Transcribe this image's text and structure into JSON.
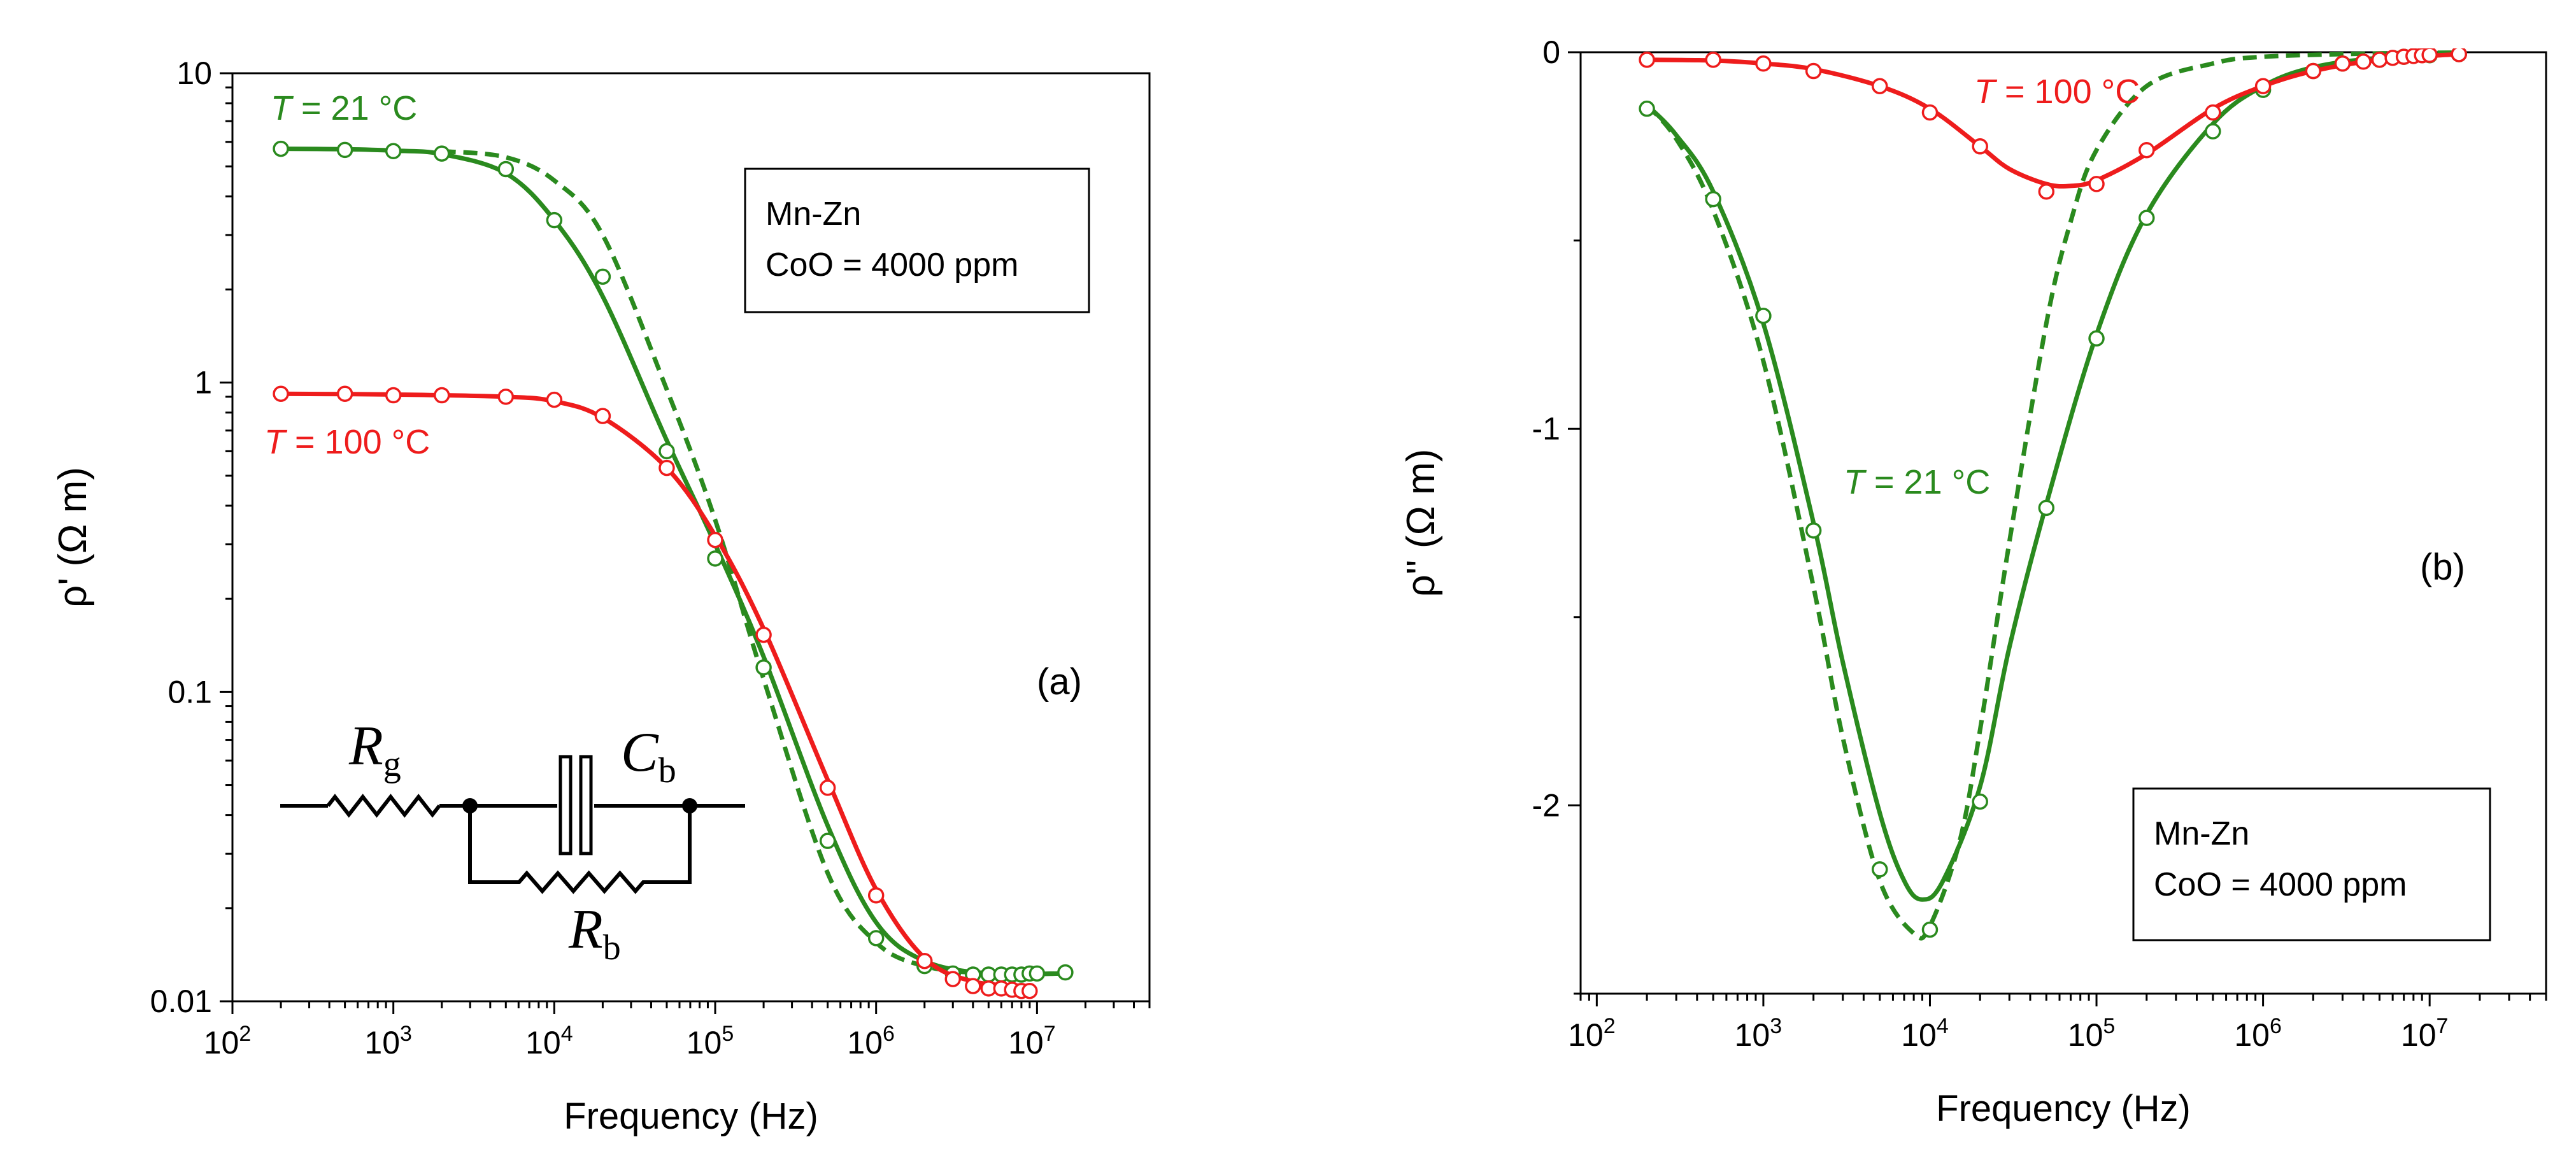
{
  "chart_data": [
    {
      "type": "scatter",
      "panel_label": "(a)",
      "xlabel": "Frequency (Hz)",
      "ylabel": "ρ' (Ω m)",
      "x_scale": "log",
      "y_scale": "log",
      "xlim": [
        100,
        50000000
      ],
      "ylim": [
        0.01,
        10
      ],
      "x_ticks": [
        {
          "value": 100,
          "base": "10",
          "exp": "2"
        },
        {
          "value": 1000,
          "base": "10",
          "exp": "3"
        },
        {
          "value": 10000,
          "base": "10",
          "exp": "4"
        },
        {
          "value": 100000,
          "base": "10",
          "exp": "5"
        },
        {
          "value": 1000000,
          "base": "10",
          "exp": "6"
        },
        {
          "value": 10000000,
          "base": "10",
          "exp": "7"
        }
      ],
      "y_ticks": [
        {
          "value": 0.01,
          "label": "0.01"
        },
        {
          "value": 0.1,
          "label": "0.1"
        },
        {
          "value": 1,
          "label": "1"
        },
        {
          "value": 10,
          "label": "10"
        }
      ],
      "legend_box": {
        "line1": "Mn-Zn",
        "line2": "CoO = 4000 ppm",
        "position": "upper-right"
      },
      "series": [
        {
          "name": "T = 21 °C",
          "label_italic": "T",
          "label_rest": " = 21 °C",
          "color": "#2a8a1e",
          "marker": "open-circle",
          "points": [
            [
              200,
              5.7
            ],
            [
              500,
              5.65
            ],
            [
              1000,
              5.6
            ],
            [
              2000,
              5.5
            ],
            [
              5000,
              4.9
            ],
            [
              10000,
              3.35
            ],
            [
              20000,
              2.2
            ],
            [
              50000,
              0.6
            ],
            [
              100000,
              0.27
            ],
            [
              200000,
              0.12
            ],
            [
              500000,
              0.033
            ],
            [
              1000000,
              0.016
            ],
            [
              2000000,
              0.013
            ],
            [
              3000000,
              0.0123
            ],
            [
              4000000,
              0.0122
            ],
            [
              5000000,
              0.0122
            ],
            [
              6000000,
              0.0122
            ],
            [
              7000000,
              0.0122
            ],
            [
              8000000,
              0.0122
            ],
            [
              9000000,
              0.0123
            ],
            [
              10000000,
              0.0123
            ],
            [
              15000000,
              0.0124
            ]
          ],
          "fit_solid": [
            [
              200,
              5.7
            ],
            [
              500,
              5.68
            ],
            [
              1000,
              5.62
            ],
            [
              2000,
              5.48
            ],
            [
              5000,
              4.75
            ],
            [
              10000,
              3.35
            ],
            [
              20000,
              1.9
            ],
            [
              50000,
              0.65
            ],
            [
              100000,
              0.3
            ],
            [
              200000,
              0.13
            ],
            [
              500000,
              0.037
            ],
            [
              1000000,
              0.018
            ],
            [
              2000000,
              0.0135
            ],
            [
              5000000,
              0.0123
            ],
            [
              15000000,
              0.0123
            ]
          ],
          "fit_dashed": [
            [
              2000,
              5.6
            ],
            [
              5000,
              5.35
            ],
            [
              10000,
              4.5
            ],
            [
              20000,
              3.0
            ],
            [
              50000,
              0.95
            ],
            [
              100000,
              0.36
            ],
            [
              200000,
              0.11
            ],
            [
              500000,
              0.026
            ],
            [
              1000000,
              0.0155
            ],
            [
              2000000,
              0.013
            ],
            [
              5000000,
              0.0123
            ],
            [
              15000000,
              0.0123
            ]
          ]
        },
        {
          "name": "T = 100 °C",
          "label_italic": "T",
          "label_rest": " = 100 °C",
          "color": "#ee1c1c",
          "marker": "open-circle",
          "points": [
            [
              200,
              0.92
            ],
            [
              500,
              0.92
            ],
            [
              1000,
              0.91
            ],
            [
              2000,
              0.91
            ],
            [
              5000,
              0.9
            ],
            [
              10000,
              0.88
            ],
            [
              20000,
              0.78
            ],
            [
              50000,
              0.53
            ],
            [
              100000,
              0.31
            ],
            [
              200000,
              0.153
            ],
            [
              500000,
              0.049
            ],
            [
              1000000,
              0.022
            ],
            [
              2000000,
              0.0135
            ],
            [
              3000000,
              0.0118
            ],
            [
              4000000,
              0.0112
            ],
            [
              5000000,
              0.011
            ],
            [
              6000000,
              0.011
            ],
            [
              7000000,
              0.0109
            ],
            [
              8000000,
              0.0108
            ],
            [
              9000000,
              0.0108
            ]
          ],
          "fit_solid": [
            [
              200,
              0.92
            ],
            [
              1000,
              0.915
            ],
            [
              5000,
              0.9
            ],
            [
              10000,
              0.87
            ],
            [
              20000,
              0.77
            ],
            [
              50000,
              0.53
            ],
            [
              100000,
              0.32
            ],
            [
              200000,
              0.16
            ],
            [
              500000,
              0.052
            ],
            [
              1000000,
              0.023
            ],
            [
              2000000,
              0.0138
            ],
            [
              4000000,
              0.0116
            ],
            [
              9000000,
              0.0112
            ]
          ]
        }
      ],
      "inset_circuit": {
        "R1": "R",
        "R1_sub": "g",
        "C": "C",
        "C_sub": "b",
        "R2": "R",
        "R2_sub": "b"
      }
    },
    {
      "type": "scatter",
      "panel_label": "(b)",
      "xlabel": "Frequency (Hz)",
      "ylabel": "ρ'' (Ω m)",
      "x_scale": "log",
      "y_scale": "linear",
      "xlim": [
        80,
        50000000
      ],
      "ylim": [
        -2.5,
        0
      ],
      "x_ticks": [
        {
          "value": 100,
          "base": "10",
          "exp": "2"
        },
        {
          "value": 1000,
          "base": "10",
          "exp": "3"
        },
        {
          "value": 10000,
          "base": "10",
          "exp": "4"
        },
        {
          "value": 100000,
          "base": "10",
          "exp": "5"
        },
        {
          "value": 1000000,
          "base": "10",
          "exp": "6"
        },
        {
          "value": 10000000,
          "base": "10",
          "exp": "7"
        }
      ],
      "y_ticks": [
        {
          "value": 0,
          "label": "0"
        },
        {
          "value": -1,
          "label": "-1"
        },
        {
          "value": -2,
          "label": "-2"
        }
      ],
      "legend_box": {
        "line1": "Mn-Zn",
        "line2": "CoO = 4000 ppm",
        "position": "lower-right"
      },
      "series": [
        {
          "name": "T = 21 °C",
          "label_italic": "T",
          "label_rest": " = 21 °C",
          "color": "#2a8a1e",
          "marker": "open-circle",
          "points": [
            [
              200,
              -0.15
            ],
            [
              500,
              -0.39
            ],
            [
              1000,
              -0.7
            ],
            [
              2000,
              -1.27
            ],
            [
              5000,
              -2.17
            ],
            [
              10000,
              -2.33
            ],
            [
              20000,
              -1.99
            ],
            [
              50000,
              -1.21
            ],
            [
              100000,
              -0.76
            ],
            [
              200000,
              -0.44
            ],
            [
              500000,
              -0.21
            ],
            [
              1000000,
              -0.1
            ],
            [
              2000000,
              -0.05
            ],
            [
              3000000,
              -0.03
            ],
            [
              5000000,
              -0.02
            ],
            [
              7000000,
              -0.012
            ],
            [
              10000000,
              -0.008
            ],
            [
              15000000,
              -0.005
            ]
          ],
          "fit_solid": [
            [
              200,
              -0.14
            ],
            [
              300,
              -0.22
            ],
            [
              500,
              -0.37
            ],
            [
              1000,
              -0.72
            ],
            [
              2000,
              -1.25
            ],
            [
              3000,
              -1.62
            ],
            [
              5000,
              -2.02
            ],
            [
              7000,
              -2.2
            ],
            [
              9000,
              -2.25
            ],
            [
              12000,
              -2.2
            ],
            [
              20000,
              -1.95
            ],
            [
              30000,
              -1.58
            ],
            [
              50000,
              -1.2
            ],
            [
              100000,
              -0.75
            ],
            [
              200000,
              -0.43
            ],
            [
              500000,
              -0.19
            ],
            [
              1000000,
              -0.09
            ],
            [
              2000000,
              -0.04
            ],
            [
              5000000,
              -0.015
            ],
            [
              15000000,
              -0.005
            ]
          ],
          "fit_dashed": [
            [
              200,
              -0.14
            ],
            [
              300,
              -0.23
            ],
            [
              500,
              -0.42
            ],
            [
              1000,
              -0.82
            ],
            [
              2000,
              -1.42
            ],
            [
              3000,
              -1.82
            ],
            [
              5000,
              -2.2
            ],
            [
              8000,
              -2.34
            ],
            [
              10000,
              -2.32
            ],
            [
              15000,
              -2.1
            ],
            [
              20000,
              -1.8
            ],
            [
              30000,
              -1.3
            ],
            [
              50000,
              -0.72
            ],
            [
              70000,
              -0.45
            ],
            [
              100000,
              -0.26
            ],
            [
              200000,
              -0.09
            ],
            [
              500000,
              -0.03
            ],
            [
              1000000,
              -0.012
            ],
            [
              5000000,
              -0.003
            ],
            [
              15000000,
              -0.001
            ]
          ]
        },
        {
          "name": "T = 100 °C",
          "label_italic": "T",
          "label_rest": " = 100 °C",
          "color": "#ee1c1c",
          "marker": "open-circle",
          "points": [
            [
              200,
              -0.02
            ],
            [
              500,
              -0.02
            ],
            [
              1000,
              -0.03
            ],
            [
              2000,
              -0.05
            ],
            [
              5000,
              -0.09
            ],
            [
              10000,
              -0.16
            ],
            [
              20000,
              -0.25
            ],
            [
              50000,
              -0.37
            ],
            [
              100000,
              -0.35
            ],
            [
              200000,
              -0.26
            ],
            [
              500000,
              -0.16
            ],
            [
              1000000,
              -0.09
            ],
            [
              2000000,
              -0.05
            ],
            [
              3000000,
              -0.03
            ],
            [
              4000000,
              -0.025
            ],
            [
              5000000,
              -0.02
            ],
            [
              6000000,
              -0.015
            ],
            [
              7000000,
              -0.012
            ],
            [
              8000000,
              -0.01
            ],
            [
              9000000,
              -0.008
            ],
            [
              10000000,
              -0.007
            ],
            [
              15000000,
              -0.005
            ]
          ],
          "fit_solid": [
            [
              200,
              -0.02
            ],
            [
              500,
              -0.022
            ],
            [
              1000,
              -0.03
            ],
            [
              2000,
              -0.045
            ],
            [
              5000,
              -0.09
            ],
            [
              10000,
              -0.15
            ],
            [
              20000,
              -0.25
            ],
            [
              30000,
              -0.31
            ],
            [
              50000,
              -0.35
            ],
            [
              70000,
              -0.355
            ],
            [
              100000,
              -0.34
            ],
            [
              200000,
              -0.27
            ],
            [
              500000,
              -0.15
            ],
            [
              1000000,
              -0.09
            ],
            [
              2000000,
              -0.05
            ],
            [
              5000000,
              -0.02
            ],
            [
              15000000,
              -0.005
            ]
          ]
        }
      ]
    }
  ]
}
